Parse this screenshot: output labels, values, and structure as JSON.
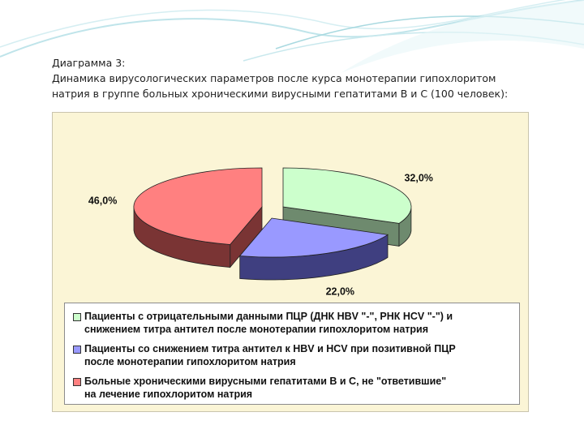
{
  "heading": {
    "line1": "Диаграмма 3:",
    "line2": "Динамика вирусологических параметров после курса монотерапии гипохлоритом",
    "line3": "натрия в группе больных хроническими вирусными гепатитами В и С (100 человек):"
  },
  "chart_data": {
    "type": "pie",
    "title": "",
    "slices": [
      {
        "value": 32.0,
        "label": "32,0%",
        "top_color": "#ccffcc",
        "side_color": "#6e8a6e",
        "legend_lines": [
          "Пациенты с отрицательными данными ПЦР (ДНК HBV \"-\", РНК HCV \"-\") и",
          "снижением титра антител после монотерапии гипохлоритом натрия"
        ]
      },
      {
        "value": 22.0,
        "label": "22,0%",
        "top_color": "#9999ff",
        "side_color": "#3f3f80",
        "legend_lines": [
          "Пациенты со снижением титра антител к HBV и HCV при позитивной ПЦР",
          "после монотерапии гипохлоритом натрия"
        ]
      },
      {
        "value": 46.0,
        "label": "46,0%",
        "top_color": "#ff8080",
        "side_color": "#7a3434",
        "legend_lines": [
          "Больные хроническими вирусными гепатитами В и С, не \"ответившие\"",
          "на лечение гипохлоритом натрия"
        ]
      }
    ],
    "legend_position": "bottom"
  },
  "colors": {
    "chart_background": "#fbf5d6",
    "decor_teal": "#9fd3dc"
  }
}
